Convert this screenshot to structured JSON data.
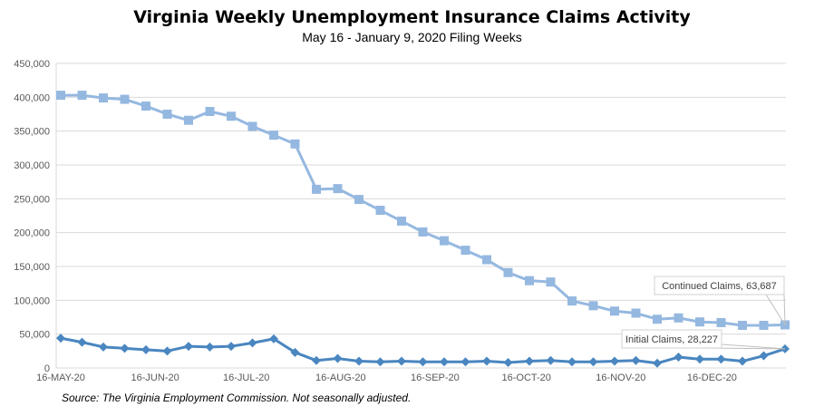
{
  "chart_data": {
    "type": "line",
    "title": "Virginia Weekly Unemployment Insurance Claims Activity",
    "subtitle": "May 16 - January 9, 2020 Filing Weeks",
    "source": "Source: The Virginia Employment Commission. Not seasonally adjusted.",
    "xlabel": "",
    "ylabel": "",
    "ylim": [
      0,
      450000
    ],
    "yticks": [
      "0",
      "50,000",
      "100,000",
      "150,000",
      "200,000",
      "250,000",
      "300,000",
      "350,000",
      "400,000",
      "450,000"
    ],
    "xticks": [
      {
        "label": "16-MAY-20",
        "week": 0
      },
      {
        "label": "16-JUN-20",
        "week": 4.43
      },
      {
        "label": "16-JUL-20",
        "week": 8.71
      },
      {
        "label": "16-AUG-20",
        "week": 13.14
      },
      {
        "label": "16-SEP-20",
        "week": 17.57
      },
      {
        "label": "16-OCT-20",
        "week": 21.86
      },
      {
        "label": "16-NOV-20",
        "week": 26.29
      },
      {
        "label": "16-DEC-20",
        "week": 30.57
      }
    ],
    "grid": true,
    "series": [
      {
        "name": "Continued Claims",
        "color": "#95b8e0",
        "marker": "square",
        "values": [
          403000,
          403000,
          399000,
          397000,
          387000,
          375000,
          366000,
          379000,
          372000,
          357000,
          344000,
          331000,
          264000,
          265000,
          249000,
          233000,
          217000,
          201000,
          188000,
          174000,
          160000,
          141000,
          129000,
          127000,
          99000,
          92000,
          84000,
          81000,
          72000,
          74000,
          68000,
          67000,
          63000,
          63000,
          63687
        ],
        "annotation": "Continued Claims, 63,687"
      },
      {
        "name": "Initial Claims",
        "color": "#4a86c0",
        "marker": "diamond",
        "values": [
          44000,
          38000,
          31000,
          29000,
          27000,
          25000,
          32000,
          31000,
          32000,
          37000,
          43000,
          23000,
          11000,
          14000,
          10000,
          9000,
          10000,
          9000,
          9000,
          9000,
          10000,
          8000,
          10000,
          11000,
          9000,
          9000,
          10000,
          11000,
          7000,
          16000,
          13000,
          13000,
          10000,
          18000,
          28227
        ],
        "annotation": "Initial Claims, 28,227"
      }
    ]
  }
}
